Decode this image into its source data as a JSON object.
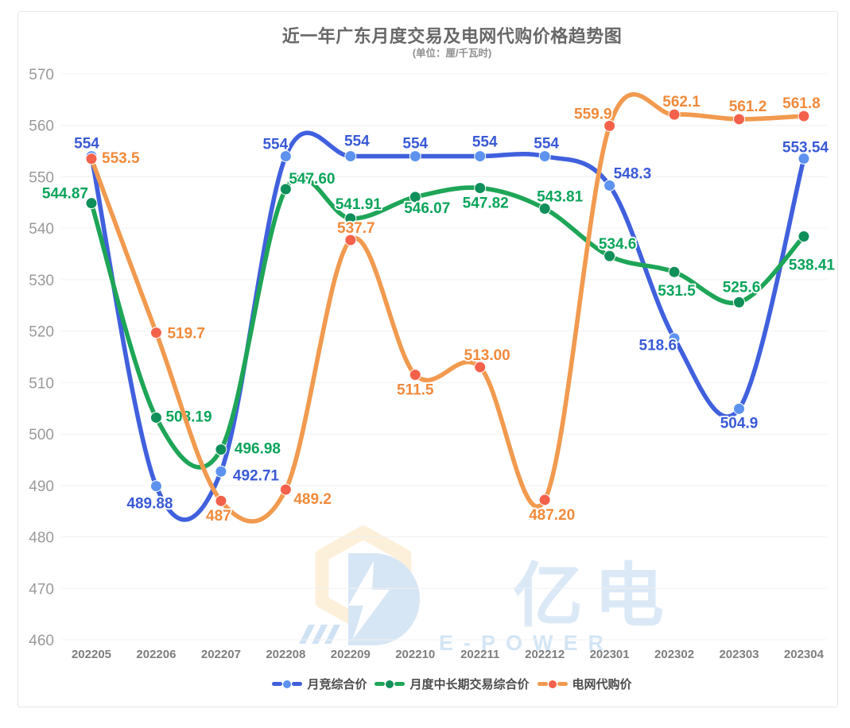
{
  "chart_data": {
    "type": "line",
    "title": "近一年广东月度交易及电网代购价格趋势图",
    "subtitle": "(单位：厘/千瓦时)",
    "xlabel": "",
    "ylabel": "",
    "ylim": [
      460,
      570
    ],
    "yticks": [
      570,
      560,
      550,
      540,
      530,
      520,
      510,
      500,
      490,
      480,
      470,
      460
    ],
    "grid": true,
    "legend_position": "bottom",
    "categories": [
      "202205",
      "202206",
      "202207",
      "202208",
      "202209",
      "202210",
      "202211",
      "202212",
      "202301",
      "202302",
      "202303",
      "202304"
    ],
    "series": [
      {
        "name": "月竞综合价",
        "line_color": "#4060dd",
        "dot_color": "#5d93ee",
        "label_color": "#3a5ad6",
        "values": [
          554,
          489.88,
          492.71,
          554,
          554,
          554,
          554,
          554,
          548.3,
          518.6,
          504.9,
          553.54
        ],
        "labels": [
          "554",
          "489.88",
          "492.71",
          "554",
          "554",
          "554",
          "554",
          "554",
          "548.3",
          "518.6",
          "504.9",
          "553.54"
        ],
        "label_pos": [
          [
            -6,
            -10,
            "m"
          ],
          [
            -8,
            28,
            "m"
          ],
          [
            15,
            11,
            "s"
          ],
          [
            -13,
            -9,
            "m"
          ],
          [
            8,
            -13,
            "m"
          ],
          [
            0,
            -10,
            "m"
          ],
          [
            6,
            -12,
            "m"
          ],
          [
            2,
            -10,
            "m"
          ],
          [
            5,
            -9,
            "s"
          ],
          [
            3,
            15,
            "e"
          ],
          [
            0,
            24,
            "m"
          ],
          [
            2,
            -8,
            "m"
          ]
        ]
      },
      {
        "name": "月度中长期交易综合价",
        "line_color": "#1ea558",
        "dot_color": "#0f8f5a",
        "label_color": "#0ca45b",
        "values": [
          544.87,
          503.19,
          496.98,
          547.6,
          541.91,
          546.07,
          547.82,
          543.81,
          534.6,
          531.5,
          525.6,
          538.41
        ],
        "labels": [
          "544.87",
          "503.19",
          "496.98",
          "547.60",
          "541.91",
          "546.07",
          "547.82",
          "543.81",
          "534.6",
          "531.5",
          "525.6",
          "538.41"
        ],
        "label_pos": [
          [
            -4,
            -6,
            "e"
          ],
          [
            12,
            5,
            "s"
          ],
          [
            17,
            5,
            "s"
          ],
          [
            4,
            -7,
            "s"
          ],
          [
            10,
            -12,
            "m"
          ],
          [
            15,
            20,
            "m"
          ],
          [
            7,
            25,
            "m"
          ],
          [
            19,
            -9,
            "m"
          ],
          [
            10,
            -9,
            "m"
          ],
          [
            3,
            30,
            "m"
          ],
          [
            3,
            -13,
            "m"
          ],
          [
            10,
            42,
            "m"
          ]
        ]
      },
      {
        "name": "电网代购价",
        "line_color": "#f19a4f",
        "dot_color": "#f4614b",
        "label_color": "#f18a3c",
        "values": [
          553.5,
          519.7,
          487,
          489.2,
          537.7,
          511.5,
          513.0,
          487.2,
          559.9,
          562.1,
          561.2,
          561.8
        ],
        "labels": [
          "553.5",
          "519.7",
          "487",
          "489.2",
          "537.7",
          "511.5",
          "513.00",
          "487.20",
          "559.9",
          "562.1",
          "561.2",
          "561.8"
        ],
        "label_pos": [
          [
            13,
            5,
            "s"
          ],
          [
            14,
            7,
            "s"
          ],
          [
            -3,
            25,
            "m"
          ],
          [
            10,
            18,
            "s"
          ],
          [
            7,
            -9,
            "m"
          ],
          [
            0,
            25,
            "m"
          ],
          [
            9,
            -9,
            "m"
          ],
          [
            9,
            25,
            "m"
          ],
          [
            3,
            -9,
            "e"
          ],
          [
            9,
            -10,
            "m"
          ],
          [
            11,
            -10,
            "m"
          ],
          [
            -3,
            -10,
            "m"
          ]
        ]
      }
    ]
  },
  "watermark": {
    "text": "亿电",
    "subtext": "E-POWER"
  }
}
